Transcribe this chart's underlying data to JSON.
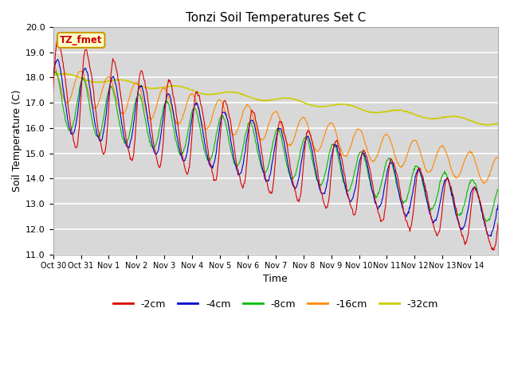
{
  "title": "Tonzi Soil Temperatures Set C",
  "xlabel": "Time",
  "ylabel": "Soil Temperature (C)",
  "ylim": [
    11.0,
    20.0
  ],
  "yticks": [
    11.0,
    12.0,
    13.0,
    14.0,
    15.0,
    16.0,
    17.0,
    18.0,
    19.0,
    20.0
  ],
  "colors": {
    "-2cm": "#dd0000",
    "-4cm": "#0000cc",
    "-8cm": "#00bb00",
    "-16cm": "#ff8800",
    "-32cm": "#cccc00"
  },
  "legend_label_box": "TZ_fmet",
  "legend_box_bg": "#ffffcc",
  "legend_box_border": "#cc9900",
  "legend_box_text": "#cc0000",
  "plot_bg": "#d8d8d8",
  "n_days": 16,
  "xtick_labels": [
    "Oct 30",
    "Oct 31",
    "Nov 1",
    "Nov 2",
    "Nov 3",
    "Nov 4",
    "Nov 5",
    "Nov 6",
    "Nov 7",
    "Nov 8",
    "Nov 9",
    "Nov 10",
    "Nov 11",
    "Nov 12",
    "Nov 13",
    "Nov 14"
  ],
  "samples_per_day": 48
}
